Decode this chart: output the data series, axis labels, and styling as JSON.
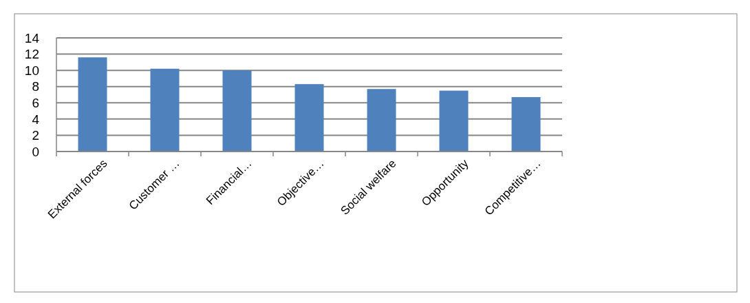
{
  "chart_data": {
    "type": "bar",
    "categories": [
      "External forces",
      "Customer …",
      "Financial…",
      "Objective…",
      "Social welfare",
      "Opportunity",
      "Competitive…"
    ],
    "values": [
      11.6,
      10.2,
      10.0,
      8.3,
      7.7,
      7.5,
      6.7
    ],
    "color": "#4f81bd",
    "ylim": [
      0,
      14
    ],
    "yticks": [
      0,
      2,
      4,
      6,
      8,
      10,
      12,
      14
    ],
    "grid": "y"
  }
}
